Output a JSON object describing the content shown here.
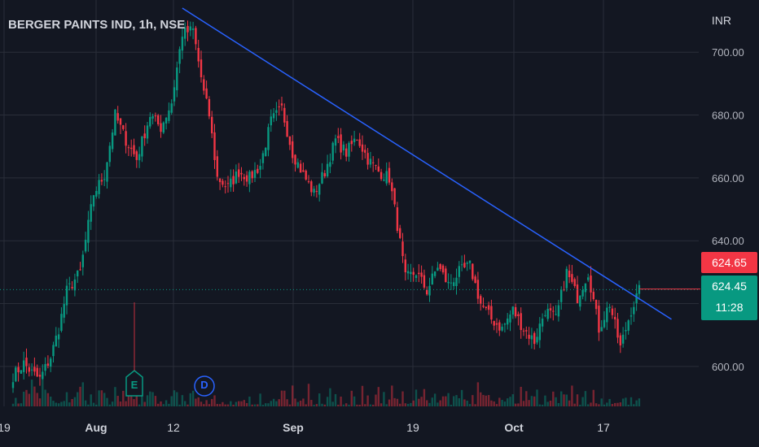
{
  "header": {
    "title": "BERGER PAINTS IND, 1h, NSE",
    "currency": "INR"
  },
  "chart_data": {
    "type": "candlestick",
    "title": "BERGER PAINTS IND, 1h, NSE",
    "currency": "INR",
    "y_ticks": [
      600,
      620,
      640,
      660,
      680,
      700
    ],
    "y_tick_labels": [
      "600.00",
      "640.00",
      "660.00",
      "680.00",
      "700.00"
    ],
    "ylim": [
      587.3,
      716.6
    ],
    "x_ticks": [
      {
        "label": "19",
        "bold": false
      },
      {
        "label": "Aug",
        "bold": true
      },
      {
        "label": "12",
        "bold": false
      },
      {
        "label": "Sep",
        "bold": true
      },
      {
        "label": "19",
        "bold": false
      },
      {
        "label": "Oct",
        "bold": true
      },
      {
        "label": "17",
        "bold": false
      }
    ],
    "price_anchors": [
      [
        0,
        597
      ],
      [
        4,
        601
      ],
      [
        7,
        598
      ],
      [
        10,
        596
      ],
      [
        14,
        603
      ],
      [
        17,
        612
      ],
      [
        20,
        624
      ],
      [
        25,
        630
      ],
      [
        30,
        655
      ],
      [
        34,
        661
      ],
      [
        38,
        680
      ],
      [
        42,
        672
      ],
      [
        46,
        666
      ],
      [
        51,
        680
      ],
      [
        55,
        676
      ],
      [
        59,
        684
      ],
      [
        63,
        706
      ],
      [
        67,
        707
      ],
      [
        71,
        687
      ],
      [
        73,
        680
      ],
      [
        76,
        660
      ],
      [
        80,
        657
      ],
      [
        84,
        662
      ],
      [
        88,
        660
      ],
      [
        92,
        664
      ],
      [
        96,
        678
      ],
      [
        100,
        682
      ],
      [
        104,
        668
      ],
      [
        108,
        661
      ],
      [
        112,
        655
      ],
      [
        116,
        662
      ],
      [
        120,
        672
      ],
      [
        124,
        668
      ],
      [
        128,
        673
      ],
      [
        132,
        666
      ],
      [
        136,
        662
      ],
      [
        140,
        660
      ],
      [
        143,
        645
      ],
      [
        146,
        628
      ],
      [
        150,
        630
      ],
      [
        154,
        624
      ],
      [
        158,
        632
      ],
      [
        162,
        626
      ],
      [
        166,
        630
      ],
      [
        170,
        632
      ],
      [
        174,
        620
      ],
      [
        178,
        615
      ],
      [
        182,
        612
      ],
      [
        186,
        618
      ],
      [
        190,
        612
      ],
      [
        194,
        608
      ],
      [
        198,
        618
      ],
      [
        202,
        615
      ],
      [
        206,
        630
      ],
      [
        210,
        622
      ],
      [
        214,
        630
      ],
      [
        218,
        612
      ],
      [
        222,
        620
      ],
      [
        226,
        606
      ],
      [
        230,
        618
      ],
      [
        233,
        624
      ]
    ],
    "trendline": {
      "start": [
        63,
        714
      ],
      "end": [
        245,
        615
      ]
    },
    "last_price_line": 624.45,
    "price_labels": {
      "red": "624.65",
      "green": "624.45",
      "countdown": "11:28"
    },
    "events": [
      {
        "letter": "E",
        "color": "#089981",
        "shape": "square"
      },
      {
        "letter": "D",
        "color": "#2962ff",
        "shape": "circle"
      }
    ],
    "colors": {
      "up": "#089981",
      "down": "#f23645",
      "trend": "#2962ff",
      "background": "#131722",
      "grid": "#2a2e39"
    },
    "grid": true
  }
}
